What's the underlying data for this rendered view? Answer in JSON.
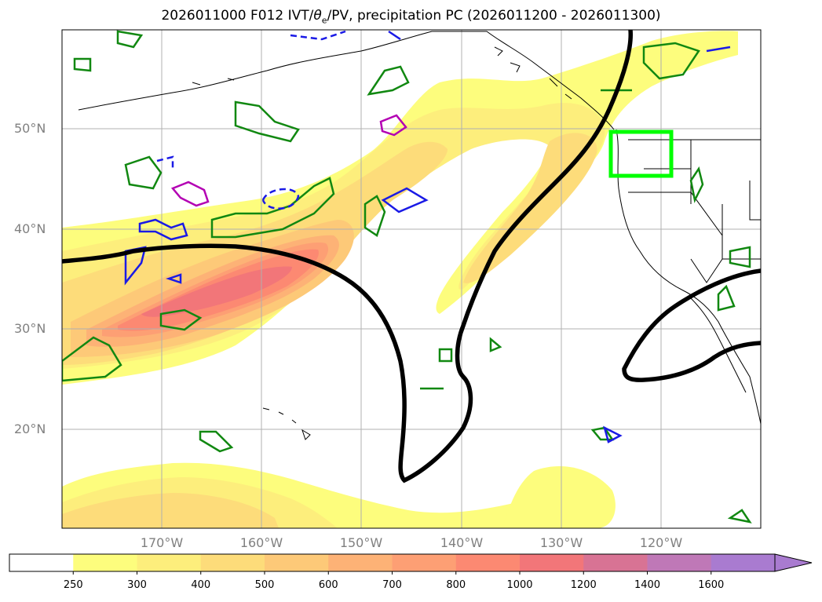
{
  "title": {
    "prefix": "2026011000 F012 IVT/",
    "theta_symbol": "θ",
    "theta_sub": "e",
    "suffix": "/PV, precipitation PC (2026011200 - 2026011300)"
  },
  "lat_labels": [
    "50°N",
    "40°N",
    "30°N",
    "20°N"
  ],
  "lon_labels": [
    "170°W",
    "160°W",
    "150°W",
    "140°W",
    "130°W",
    "120°W"
  ],
  "colorbar": {
    "levels": [
      "250",
      "300",
      "400",
      "500",
      "600",
      "700",
      "800",
      "1000",
      "1200",
      "1400",
      "1600"
    ],
    "colors": [
      "#ffffff",
      "#fdfd7d",
      "#fdee7c",
      "#fddc7a",
      "#fdc978",
      "#fdb276",
      "#fd9f74",
      "#fc8972",
      "#f27679",
      "#d87394",
      "#bf78b7",
      "#a97bd0"
    ],
    "extend": "max"
  },
  "colors": {
    "pv_line": "#000000",
    "green_contours": "#118811",
    "blue_contours": "#1a1ae6",
    "magenta_contours": "#b300b3",
    "target_box": "#00ff00",
    "grid": "#b0b0b0"
  }
}
